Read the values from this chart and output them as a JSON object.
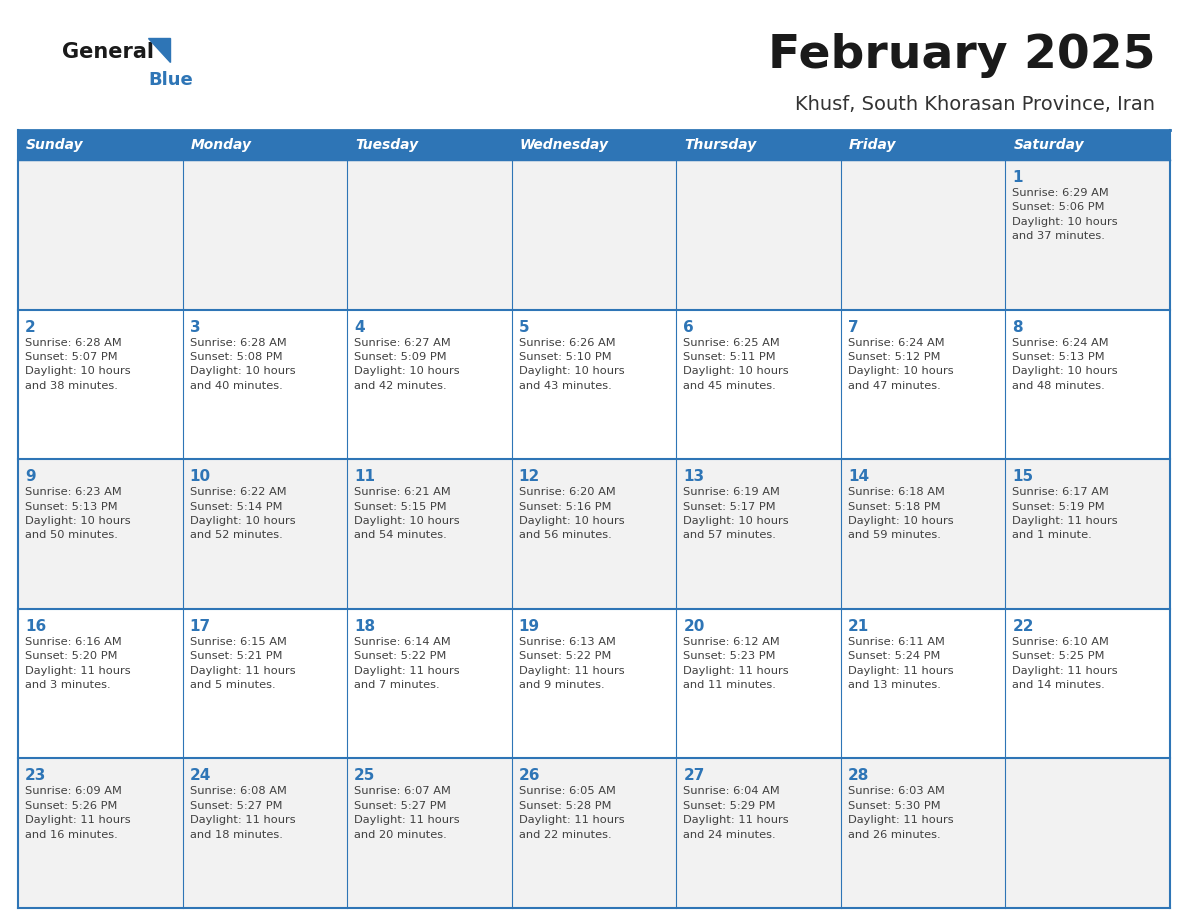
{
  "title": "February 2025",
  "subtitle": "Khusf, South Khorasan Province, Iran",
  "days_of_week": [
    "Sunday",
    "Monday",
    "Tuesday",
    "Wednesday",
    "Thursday",
    "Friday",
    "Saturday"
  ],
  "header_bg": "#2E75B6",
  "header_text": "#FFFFFF",
  "cell_bg_odd": "#F2F2F2",
  "cell_bg_even": "#FFFFFF",
  "border_color": "#2E75B6",
  "day_number_color": "#2E75B6",
  "info_text_color": "#404040",
  "title_color": "#1A1A1A",
  "subtitle_color": "#333333",
  "logo_general_color": "#1A1A1A",
  "logo_blue_color": "#2E75B6",
  "weeks": [
    [
      {
        "day": null,
        "info": null
      },
      {
        "day": null,
        "info": null
      },
      {
        "day": null,
        "info": null
      },
      {
        "day": null,
        "info": null
      },
      {
        "day": null,
        "info": null
      },
      {
        "day": null,
        "info": null
      },
      {
        "day": 1,
        "info": "Sunrise: 6:29 AM\nSunset: 5:06 PM\nDaylight: 10 hours\nand 37 minutes."
      }
    ],
    [
      {
        "day": 2,
        "info": "Sunrise: 6:28 AM\nSunset: 5:07 PM\nDaylight: 10 hours\nand 38 minutes."
      },
      {
        "day": 3,
        "info": "Sunrise: 6:28 AM\nSunset: 5:08 PM\nDaylight: 10 hours\nand 40 minutes."
      },
      {
        "day": 4,
        "info": "Sunrise: 6:27 AM\nSunset: 5:09 PM\nDaylight: 10 hours\nand 42 minutes."
      },
      {
        "day": 5,
        "info": "Sunrise: 6:26 AM\nSunset: 5:10 PM\nDaylight: 10 hours\nand 43 minutes."
      },
      {
        "day": 6,
        "info": "Sunrise: 6:25 AM\nSunset: 5:11 PM\nDaylight: 10 hours\nand 45 minutes."
      },
      {
        "day": 7,
        "info": "Sunrise: 6:24 AM\nSunset: 5:12 PM\nDaylight: 10 hours\nand 47 minutes."
      },
      {
        "day": 8,
        "info": "Sunrise: 6:24 AM\nSunset: 5:13 PM\nDaylight: 10 hours\nand 48 minutes."
      }
    ],
    [
      {
        "day": 9,
        "info": "Sunrise: 6:23 AM\nSunset: 5:13 PM\nDaylight: 10 hours\nand 50 minutes."
      },
      {
        "day": 10,
        "info": "Sunrise: 6:22 AM\nSunset: 5:14 PM\nDaylight: 10 hours\nand 52 minutes."
      },
      {
        "day": 11,
        "info": "Sunrise: 6:21 AM\nSunset: 5:15 PM\nDaylight: 10 hours\nand 54 minutes."
      },
      {
        "day": 12,
        "info": "Sunrise: 6:20 AM\nSunset: 5:16 PM\nDaylight: 10 hours\nand 56 minutes."
      },
      {
        "day": 13,
        "info": "Sunrise: 6:19 AM\nSunset: 5:17 PM\nDaylight: 10 hours\nand 57 minutes."
      },
      {
        "day": 14,
        "info": "Sunrise: 6:18 AM\nSunset: 5:18 PM\nDaylight: 10 hours\nand 59 minutes."
      },
      {
        "day": 15,
        "info": "Sunrise: 6:17 AM\nSunset: 5:19 PM\nDaylight: 11 hours\nand 1 minute."
      }
    ],
    [
      {
        "day": 16,
        "info": "Sunrise: 6:16 AM\nSunset: 5:20 PM\nDaylight: 11 hours\nand 3 minutes."
      },
      {
        "day": 17,
        "info": "Sunrise: 6:15 AM\nSunset: 5:21 PM\nDaylight: 11 hours\nand 5 minutes."
      },
      {
        "day": 18,
        "info": "Sunrise: 6:14 AM\nSunset: 5:22 PM\nDaylight: 11 hours\nand 7 minutes."
      },
      {
        "day": 19,
        "info": "Sunrise: 6:13 AM\nSunset: 5:22 PM\nDaylight: 11 hours\nand 9 minutes."
      },
      {
        "day": 20,
        "info": "Sunrise: 6:12 AM\nSunset: 5:23 PM\nDaylight: 11 hours\nand 11 minutes."
      },
      {
        "day": 21,
        "info": "Sunrise: 6:11 AM\nSunset: 5:24 PM\nDaylight: 11 hours\nand 13 minutes."
      },
      {
        "day": 22,
        "info": "Sunrise: 6:10 AM\nSunset: 5:25 PM\nDaylight: 11 hours\nand 14 minutes."
      }
    ],
    [
      {
        "day": 23,
        "info": "Sunrise: 6:09 AM\nSunset: 5:26 PM\nDaylight: 11 hours\nand 16 minutes."
      },
      {
        "day": 24,
        "info": "Sunrise: 6:08 AM\nSunset: 5:27 PM\nDaylight: 11 hours\nand 18 minutes."
      },
      {
        "day": 25,
        "info": "Sunrise: 6:07 AM\nSunset: 5:27 PM\nDaylight: 11 hours\nand 20 minutes."
      },
      {
        "day": 26,
        "info": "Sunrise: 6:05 AM\nSunset: 5:28 PM\nDaylight: 11 hours\nand 22 minutes."
      },
      {
        "day": 27,
        "info": "Sunrise: 6:04 AM\nSunset: 5:29 PM\nDaylight: 11 hours\nand 24 minutes."
      },
      {
        "day": 28,
        "info": "Sunrise: 6:03 AM\nSunset: 5:30 PM\nDaylight: 11 hours\nand 26 minutes."
      },
      {
        "day": null,
        "info": null
      }
    ]
  ]
}
